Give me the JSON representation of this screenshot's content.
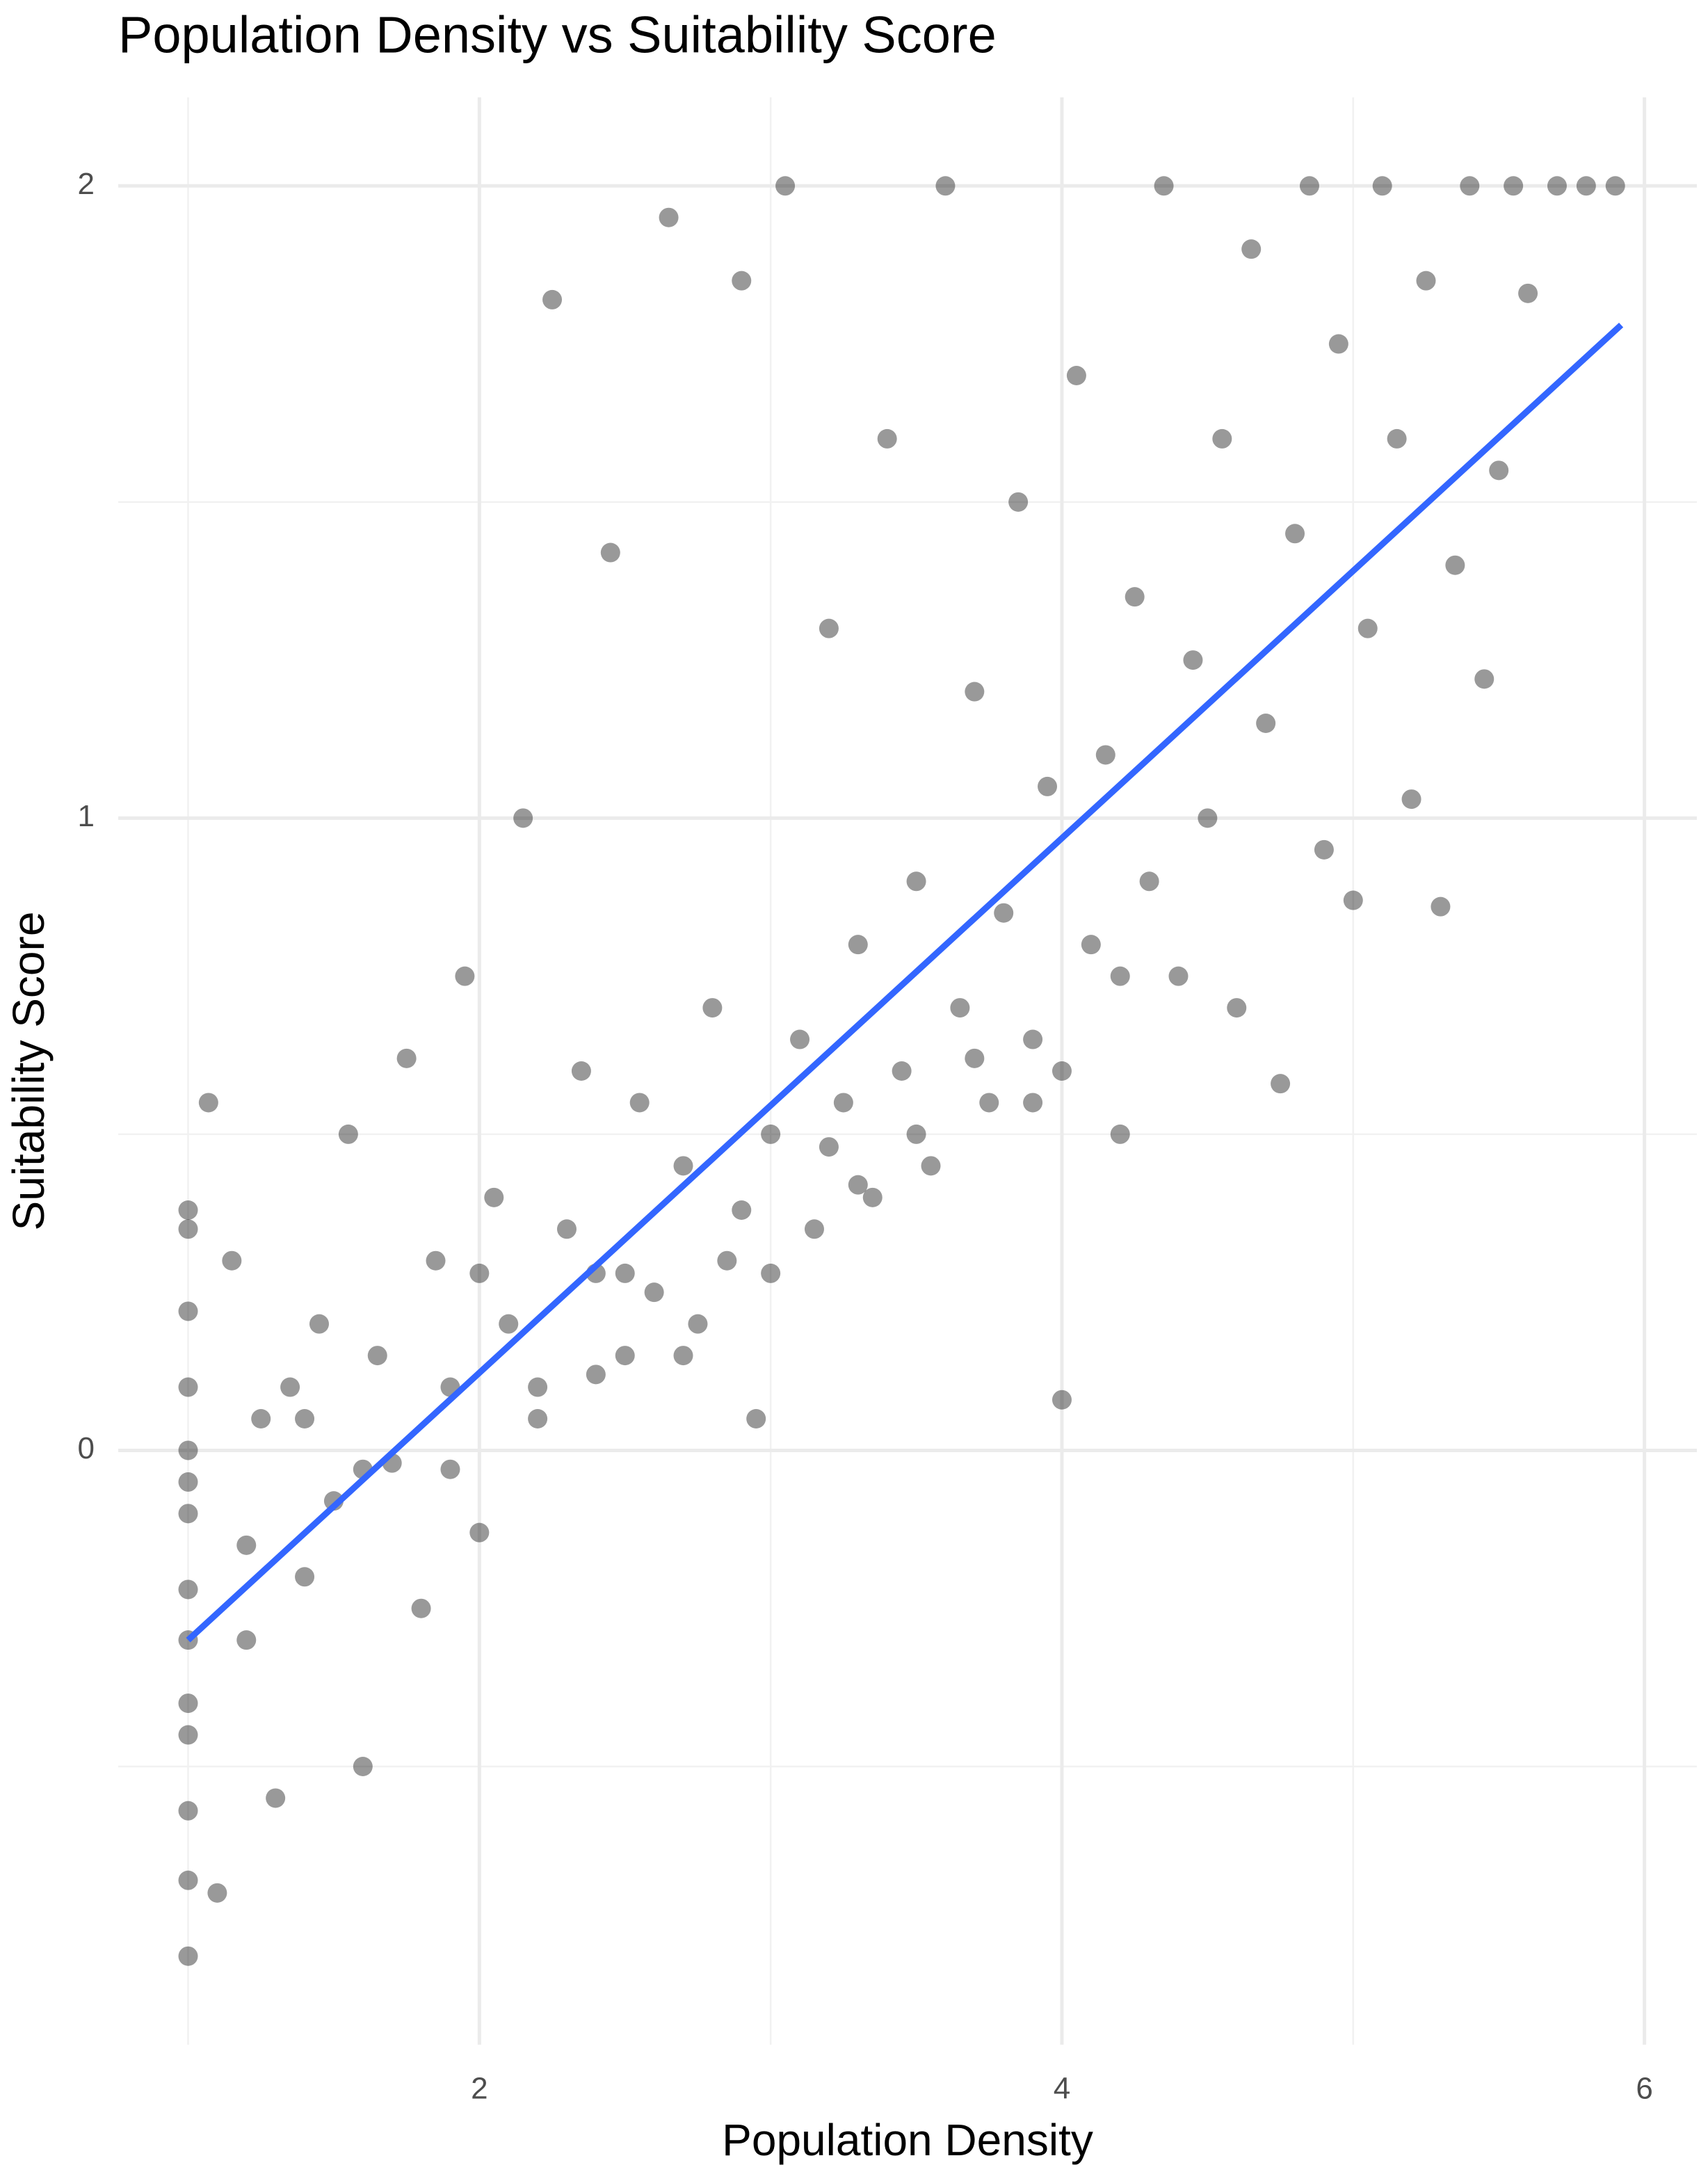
{
  "chart_data": {
    "type": "scatter",
    "title": "Population Density vs Suitability Score",
    "x_label": "Population Density",
    "y_label": "Suitability Score",
    "x": [
      1,
      1,
      1,
      1,
      1,
      1,
      1,
      1,
      1,
      1,
      1,
      1,
      1,
      1,
      1.07,
      1.1,
      1.15,
      1.2,
      1.25,
      1.3,
      1.35,
      1.4,
      1.45,
      1.5,
      1.55,
      1.6,
      1.65,
      1.7,
      1.75,
      1.8,
      1.85,
      1.9,
      1.95,
      2.0,
      2.05,
      2.1,
      2.15,
      2.2,
      2.25,
      2.3,
      2.35,
      2.4,
      2.45,
      2.5,
      2.55,
      2.6,
      2.65,
      2.7,
      2.75,
      2.8,
      2.85,
      2.9,
      2.95,
      3.0,
      3.05,
      3.1,
      3.15,
      3.2,
      3.25,
      3.3,
      3.35,
      3.4,
      3.45,
      3.5,
      3.55,
      3.6,
      3.65,
      3.7,
      3.75,
      3.8,
      3.85,
      3.9,
      3.95,
      4.0,
      4.0,
      4.05,
      4.1,
      4.15,
      4.2,
      4.25,
      4.3,
      4.35,
      4.4,
      4.45,
      4.5,
      4.55,
      4.6,
      4.65,
      4.7,
      4.75,
      4.8,
      4.85,
      4.9,
      4.95,
      5.0,
      5.05,
      5.1,
      5.15,
      5.2,
      5.25,
      5.3,
      5.35,
      5.4,
      5.45,
      5.5,
      5.55,
      5.6,
      5.7,
      5.8,
      5.9,
      3.0,
      2.5,
      2.0,
      1.6,
      1.9,
      2.7,
      3.3,
      3.5,
      3.7,
      2.2,
      1.4,
      1.2,
      3.9,
      4.2,
      2.4,
      2.9,
      3.2
    ],
    "y": [
      0.38,
      0.22,
      0.1,
      0,
      -0.1,
      -0.22,
      -0.3,
      -0.4,
      -0.57,
      -0.68,
      -0.8,
      0.35,
      -0.05,
      -0.45,
      0.55,
      -0.7,
      0.3,
      -0.15,
      0.05,
      -0.55,
      0.1,
      -0.2,
      0.2,
      -0.08,
      0.5,
      -0.5,
      0.15,
      -0.02,
      0.62,
      -0.25,
      0.3,
      0.1,
      0.75,
      -0.13,
      0.4,
      0.2,
      1.0,
      0.05,
      1.82,
      0.35,
      0.6,
      0.28,
      1.42,
      0.15,
      0.55,
      0.25,
      1.95,
      0.45,
      0.2,
      0.7,
      0.3,
      1.85,
      0.05,
      0.5,
      2.0,
      0.65,
      0.35,
      1.3,
      0.55,
      0.8,
      0.4,
      1.6,
      0.6,
      0.9,
      0.45,
      2.0,
      0.7,
      1.2,
      0.55,
      0.85,
      1.5,
      0.65,
      1.05,
      0.08,
      0.6,
      1.7,
      0.8,
      1.1,
      0.5,
      1.35,
      0.9,
      2.0,
      0.75,
      1.25,
      1.0,
      1.6,
      0.7,
      1.9,
      1.15,
      0.58,
      1.45,
      2.0,
      0.95,
      1.75,
      0.87,
      1.3,
      2.0,
      1.6,
      1.03,
      1.85,
      0.86,
      1.4,
      2.0,
      1.22,
      1.55,
      2.0,
      1.83,
      2.0,
      2.0,
      2.0,
      0.28,
      0.28,
      0.28,
      -0.03,
      -0.03,
      0.15,
      0.42,
      0.5,
      0.62,
      0.1,
      0.05,
      -0.3,
      0.55,
      0.75,
      0.12,
      0.38,
      0.48
    ],
    "color": "#000000",
    "opacity": 0.4,
    "trend_line": {
      "x": [
        1,
        5.92
      ],
      "y": [
        -0.3,
        1.78
      ],
      "color": "#3366ff"
    },
    "xlim": [
      0.76,
      6.18
    ],
    "ylim": [
      -0.94,
      2.14
    ],
    "xticks": [
      2,
      4,
      6
    ],
    "yticks": [
      0,
      1,
      2
    ],
    "grid": true,
    "minor_grid": true
  }
}
